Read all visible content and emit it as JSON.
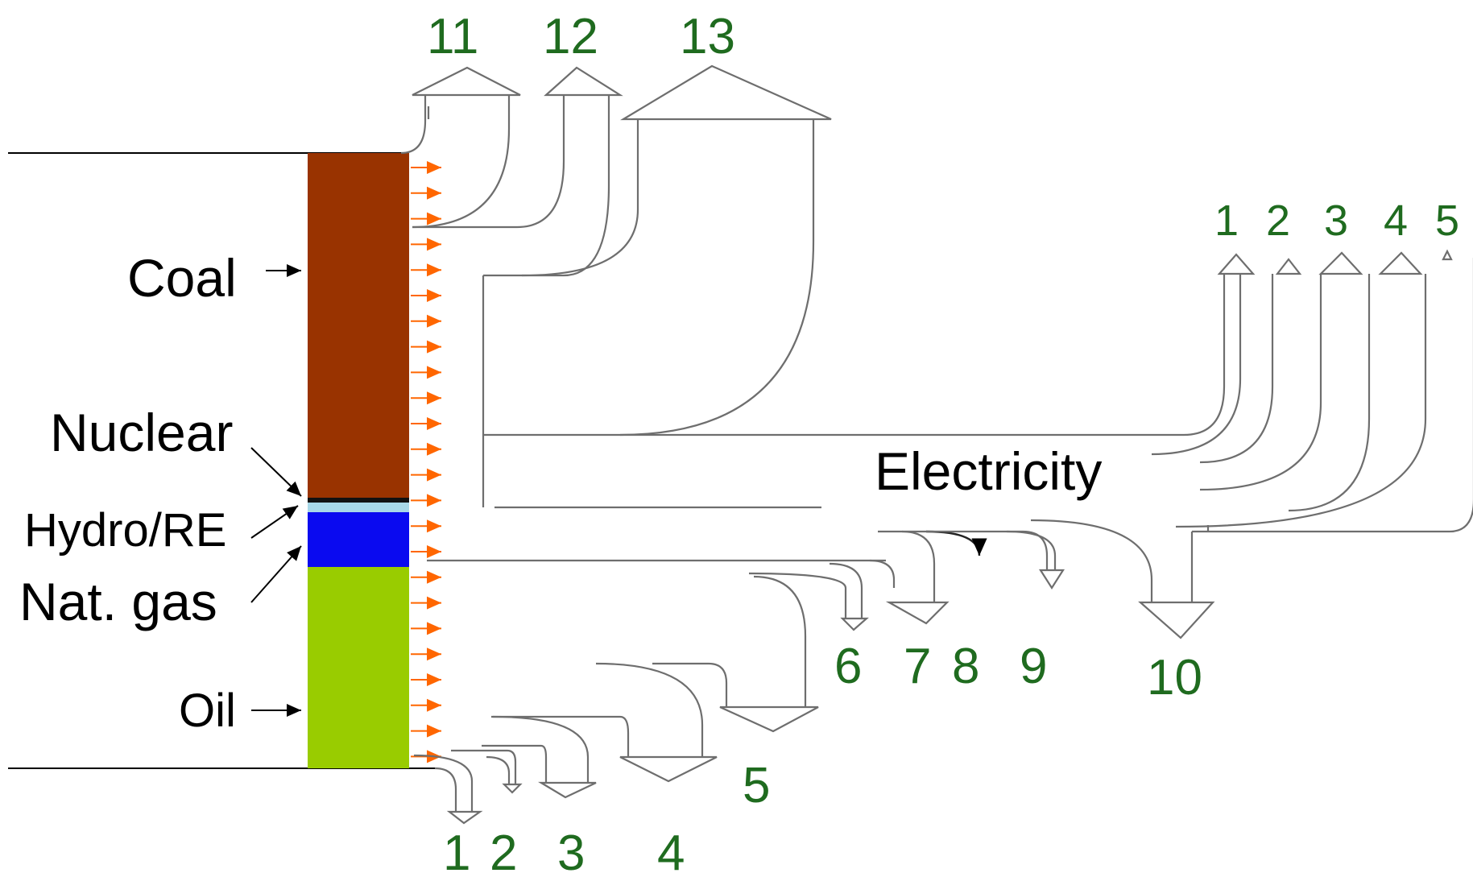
{
  "colors": {
    "coal": "#993300",
    "nuclear": "#111111",
    "hydro_re": "#a8d8e8",
    "nat_gas": "#0a0af0",
    "oil": "#99cc00",
    "input_arrows": "#ff6600",
    "numbers": "#1f6b1f"
  },
  "sources": {
    "coal": "Coal",
    "nuclear": "Nuclear",
    "hydro_re": "Hydro/RE",
    "nat_gas": "Nat. gas",
    "oil": "Oil"
  },
  "electricity_label": "Electricity",
  "top_numbers": [
    "11",
    "12",
    "13"
  ],
  "right_numbers": [
    "1",
    "2",
    "3",
    "4",
    "5"
  ],
  "middle_numbers": [
    "6",
    "7",
    "8",
    "9",
    "10"
  ],
  "bottom_numbers": [
    "1",
    "2",
    "3",
    "4",
    "5"
  ]
}
